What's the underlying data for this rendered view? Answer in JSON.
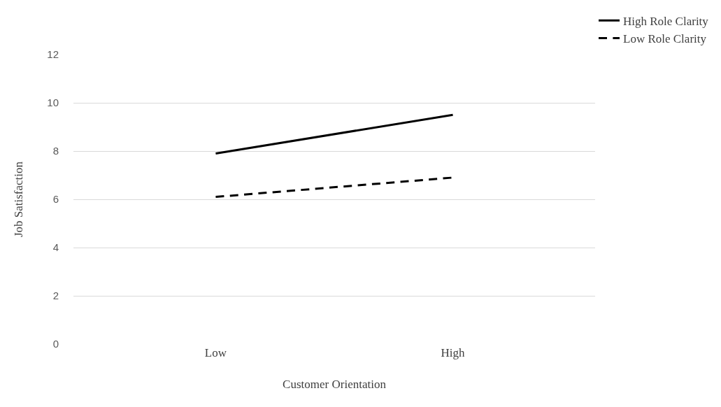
{
  "chart_data": {
    "type": "line",
    "xlabel": "Customer Orientation",
    "ylabel": "Job Satisfaction",
    "categories": [
      "Low",
      "High"
    ],
    "series": [
      {
        "name": "High Role Clarity",
        "color": "#000000",
        "values": [
          7.9,
          9.5
        ],
        "line_style": "solid"
      },
      {
        "name": "Low Role Clarity",
        "color": "#000000",
        "values": [
          6.1,
          6.9
        ],
        "line_style": "dashed"
      }
    ],
    "ylim": [
      0,
      12
    ],
    "yticks": [
      0,
      2,
      4,
      6,
      8,
      10,
      12
    ],
    "grid": "y",
    "legend": "top right",
    "marker": "none"
  }
}
